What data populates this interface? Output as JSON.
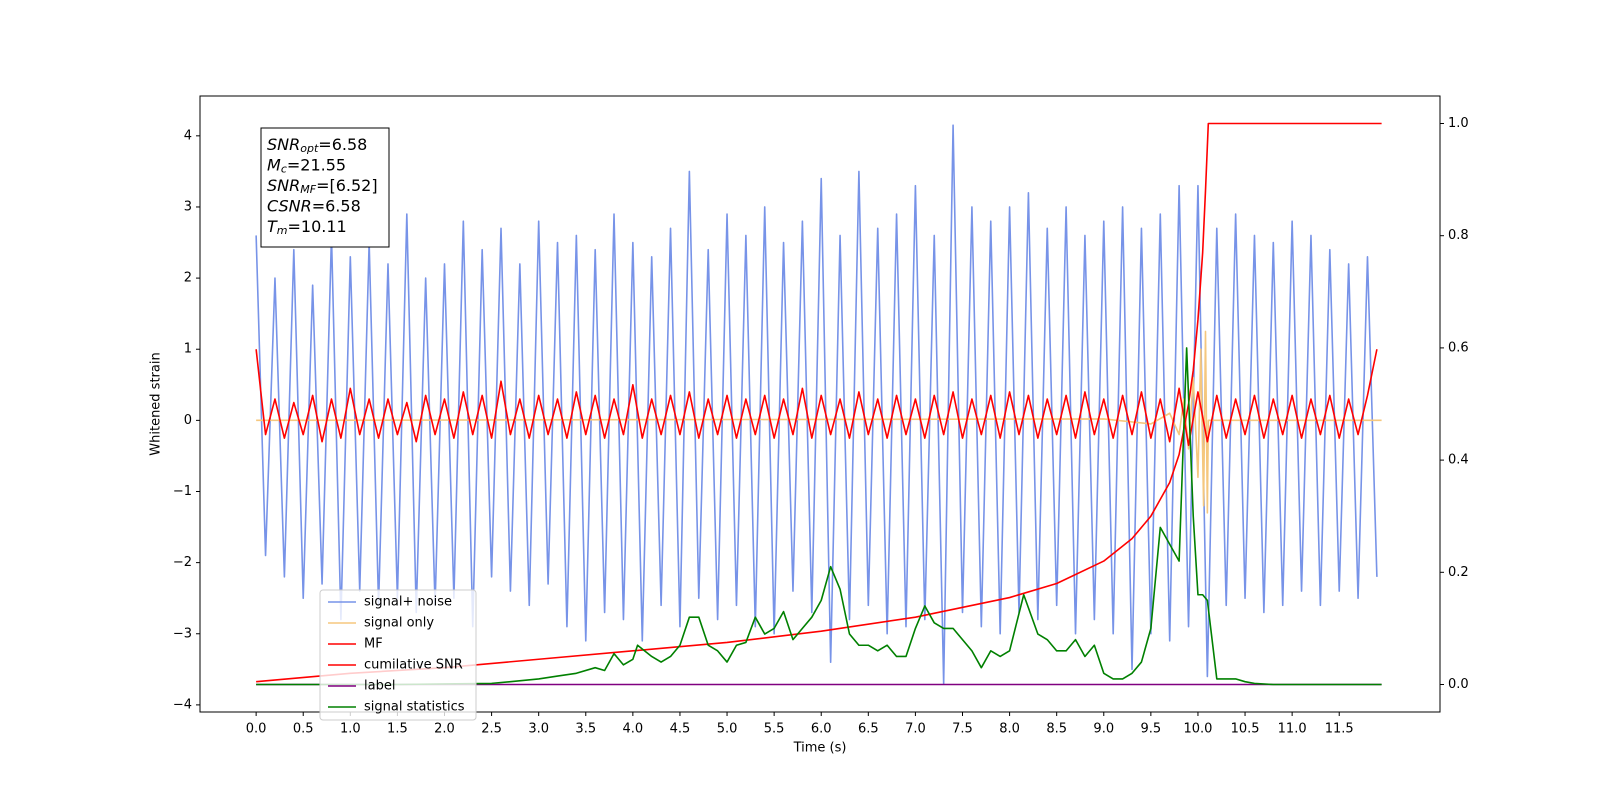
{
  "chart_data": {
    "type": "line",
    "xlabel": "Time (s)",
    "ylabel": "Whitened strain",
    "xlim": [
      -0.596,
      12.57
    ],
    "ylim": [
      -4.1,
      4.56
    ],
    "y2lim": [
      -0.049,
      1.049
    ],
    "xticks": [
      {
        "value": 0,
        "label": "0.0"
      },
      0.5,
      {
        "value": 1,
        "label": "1.0"
      },
      1.5,
      {
        "value": 2,
        "label": "2.0"
      },
      2.5,
      {
        "value": 3,
        "label": "3.0"
      },
      3.5,
      {
        "value": 4,
        "label": "4.0"
      },
      4.5,
      {
        "value": 5,
        "label": "5.0"
      },
      5.5,
      {
        "value": 6,
        "label": "6.0"
      },
      6.5,
      {
        "value": 7,
        "label": "7.0"
      },
      7.5,
      {
        "value": 8,
        "label": "8.0"
      },
      8.5,
      {
        "value": 9,
        "label": "9.0"
      },
      9.5,
      {
        "value": 10,
        "label": "10.0"
      },
      10.5,
      {
        "value": 11,
        "label": "11.0"
      },
      11.5
    ],
    "yticks": [
      {
        "value": -4,
        "label": "−4"
      },
      {
        "value": -3,
        "label": "−3"
      },
      {
        "value": -2,
        "label": "−2"
      },
      {
        "value": -1,
        "label": "−1"
      },
      0,
      1,
      2,
      3,
      4
    ],
    "y2ticks": [
      {
        "value": 0,
        "label": "0.0"
      },
      0.2,
      0.4,
      0.6,
      0.8,
      {
        "value": 1,
        "label": "1.0"
      }
    ],
    "legend": "lower left",
    "annotations": [
      {
        "symbol": "SNR",
        "subscript": "opt",
        "text": "=6.58"
      },
      {
        "symbol": "M",
        "subscript": "c",
        "text": "=21.55"
      },
      {
        "symbol": "SNR",
        "subscript": "MF",
        "text": "=[6.52]"
      },
      {
        "symbol": "CSNR",
        "text": "=6.58"
      },
      {
        "symbol": "T",
        "subscript": "m",
        "text": "=10.11"
      }
    ],
    "x": [
      0,
      0.1,
      0.2,
      0.3,
      0.4,
      0.5,
      0.6,
      0.7,
      0.8,
      0.9,
      1,
      1.1,
      1.2,
      1.3,
      1.4,
      1.5,
      1.6,
      1.7,
      1.8,
      1.9,
      2,
      2.1,
      2.2,
      2.3,
      2.4,
      2.5,
      2.6,
      2.7,
      2.8,
      2.9,
      3,
      3.1,
      3.2,
      3.3,
      3.4,
      3.5,
      3.6,
      3.7,
      3.8,
      3.9,
      4,
      4.1,
      4.2,
      4.3,
      4.4,
      4.5,
      4.6,
      4.7,
      4.8,
      4.9,
      5,
      5.1,
      5.2,
      5.3,
      5.4,
      5.5,
      5.6,
      5.7,
      5.8,
      5.9,
      6,
      6.1,
      6.2,
      6.3,
      6.4,
      6.5,
      6.6,
      6.7,
      6.8,
      6.9,
      7,
      7.1,
      7.2,
      7.3,
      7.4,
      7.5,
      7.6,
      7.7,
      7.8,
      7.9,
      8,
      8.1,
      8.2,
      8.3,
      8.4,
      8.5,
      8.6,
      8.7,
      8.8,
      8.9,
      9,
      9.1,
      9.2,
      9.3,
      9.4,
      9.5,
      9.6,
      9.7,
      9.8,
      9.9,
      10,
      10.1,
      10.2,
      10.3,
      10.4,
      10.5,
      10.6,
      10.7,
      10.8,
      10.9,
      11,
      11.1,
      11.2,
      11.3,
      11.4,
      11.5,
      11.6,
      11.7,
      11.8,
      11.9
    ],
    "series": [
      {
        "name": "signal+ noise",
        "color": "#7793e8",
        "values": [
          2.6,
          -1.9,
          2.0,
          -2.2,
          2.4,
          -2.5,
          1.9,
          -2.3,
          2.6,
          -2.8,
          2.3,
          -2.4,
          2.5,
          -2.6,
          2.2,
          -2.5,
          2.9,
          -2.7,
          2.0,
          -2.6,
          2.2,
          -2.5,
          2.8,
          -2.9,
          2.4,
          -2.2,
          2.7,
          -2.4,
          2.2,
          -2.6,
          2.8,
          -2.3,
          2.5,
          -2.9,
          2.6,
          -3.1,
          2.4,
          -2.7,
          2.9,
          -2.8,
          2.5,
          -3.1,
          2.3,
          -2.6,
          2.7,
          -2.9,
          3.5,
          -2.5,
          2.4,
          -2.8,
          2.9,
          -2.6,
          2.6,
          -2.9,
          3.0,
          -3.0,
          2.5,
          -2.4,
          2.8,
          -2.7,
          3.4,
          -3.4,
          2.6,
          -2.8,
          3.5,
          -2.6,
          2.7,
          -3.0,
          2.9,
          -2.9,
          3.3,
          -2.8,
          2.6,
          -3.7,
          4.15,
          -2.7,
          3.0,
          -2.9,
          2.8,
          -3.0,
          3.0,
          -2.7,
          3.2,
          -2.8,
          2.7,
          -2.6,
          3.0,
          -3.0,
          2.6,
          -2.8,
          2.8,
          -3.0,
          3.0,
          -3.5,
          2.7,
          -3.0,
          2.9,
          -3.1,
          3.3,
          -2.9,
          3.3,
          -3.6,
          2.7,
          -2.6,
          2.9,
          -2.5,
          2.6,
          -2.7,
          2.5,
          -2.6,
          2.8,
          -2.4,
          2.6,
          -2.6,
          2.4,
          -2.4,
          2.2,
          -2.5,
          2.3,
          -2.2
        ]
      },
      {
        "name": "signal only",
        "color": "#f5c77e",
        "x": [
          0,
          9.0,
          9.5,
          9.7,
          9.8,
          9.85,
          9.9,
          9.95,
          10.0,
          10.03,
          10.06,
          10.08,
          10.1,
          10.11,
          10.2,
          11.95
        ],
        "values": [
          0,
          0.02,
          -0.05,
          0.1,
          -0.2,
          0.3,
          -0.4,
          0.6,
          -0.8,
          1.0,
          -1.2,
          1.25,
          -1.3,
          0,
          0,
          0
        ]
      },
      {
        "name": "MF",
        "color": "red",
        "values": [
          1.0,
          -0.2,
          0.3,
          -0.25,
          0.25,
          -0.2,
          0.35,
          -0.3,
          0.3,
          -0.25,
          0.45,
          -0.2,
          0.3,
          -0.25,
          0.3,
          -0.2,
          0.25,
          -0.3,
          0.35,
          -0.2,
          0.3,
          -0.25,
          0.4,
          -0.2,
          0.35,
          -0.25,
          0.55,
          -0.2,
          0.3,
          -0.25,
          0.35,
          -0.2,
          0.3,
          -0.25,
          0.4,
          -0.2,
          0.35,
          -0.25,
          0.3,
          -0.2,
          0.5,
          -0.25,
          0.3,
          -0.2,
          0.35,
          -0.2,
          0.4,
          -0.25,
          0.3,
          -0.2,
          0.35,
          -0.25,
          0.3,
          -0.2,
          0.35,
          -0.25,
          0.3,
          -0.2,
          0.45,
          -0.25,
          0.35,
          -0.2,
          0.3,
          -0.25,
          0.4,
          -0.2,
          0.3,
          -0.25,
          0.35,
          -0.2,
          0.3,
          -0.25,
          0.35,
          -0.2,
          0.4,
          -0.25,
          0.3,
          -0.2,
          0.35,
          -0.25,
          0.4,
          -0.2,
          0.35,
          -0.25,
          0.3,
          -0.2,
          0.35,
          -0.25,
          0.4,
          -0.2,
          0.3,
          -0.25,
          0.35,
          -0.2,
          0.4,
          -0.25,
          0.3,
          -0.3,
          0.45,
          -0.35,
          0.4,
          -0.3,
          0.35,
          -0.25,
          0.3,
          -0.2,
          0.35,
          -0.25,
          0.3,
          -0.2,
          0.35,
          -0.25,
          0.3,
          -0.2,
          0.35,
          -0.25,
          0.3,
          -0.2,
          0.35,
          1.0
        ]
      },
      {
        "name": "cumilative SNR",
        "color": "red",
        "axis": "y2",
        "x": [
          0,
          1,
          2,
          3,
          4,
          5,
          6,
          7,
          8,
          8.5,
          9,
          9.3,
          9.5,
          9.7,
          9.8,
          9.9,
          9.95,
          10.0,
          10.05,
          10.08,
          10.11,
          11.95
        ],
        "values": [
          0.005,
          0.02,
          0.03,
          0.045,
          0.06,
          0.075,
          0.095,
          0.12,
          0.155,
          0.18,
          0.22,
          0.26,
          0.3,
          0.36,
          0.41,
          0.5,
          0.56,
          0.65,
          0.77,
          0.88,
          1.0,
          1.0
        ]
      },
      {
        "name": "label",
        "color": "purple",
        "axis": "y2",
        "x": [
          0,
          11.95
        ],
        "values": [
          0,
          0
        ]
      },
      {
        "name": "signal statistics",
        "color": "green",
        "axis": "y2",
        "x": [
          0,
          0.5,
          1,
          1.5,
          2,
          2.5,
          2.7,
          3.0,
          3.2,
          3.4,
          3.6,
          3.7,
          3.8,
          3.9,
          4.0,
          4.05,
          4.2,
          4.3,
          4.4,
          4.5,
          4.6,
          4.7,
          4.8,
          4.9,
          5.0,
          5.1,
          5.2,
          5.3,
          5.4,
          5.5,
          5.6,
          5.7,
          5.8,
          5.9,
          6.0,
          6.1,
          6.2,
          6.3,
          6.4,
          6.5,
          6.6,
          6.7,
          6.8,
          6.9,
          7.0,
          7.1,
          7.2,
          7.3,
          7.4,
          7.5,
          7.6,
          7.7,
          7.8,
          7.9,
          8.0,
          8.15,
          8.3,
          8.4,
          8.5,
          8.6,
          8.7,
          8.8,
          8.9,
          9.0,
          9.1,
          9.2,
          9.3,
          9.4,
          9.5,
          9.6,
          9.7,
          9.8,
          9.88,
          9.95,
          10.0,
          10.05,
          10.1,
          10.2,
          10.3,
          10.4,
          10.5,
          10.6,
          10.8,
          11.0,
          11.5,
          11.95
        ],
        "values": [
          0,
          0,
          0,
          0,
          0.001,
          0.002,
          0.005,
          0.01,
          0.015,
          0.02,
          0.03,
          0.025,
          0.055,
          0.035,
          0.045,
          0.07,
          0.05,
          0.04,
          0.05,
          0.07,
          0.12,
          0.12,
          0.07,
          0.06,
          0.04,
          0.07,
          0.075,
          0.12,
          0.09,
          0.1,
          0.13,
          0.08,
          0.1,
          0.12,
          0.15,
          0.21,
          0.17,
          0.09,
          0.07,
          0.07,
          0.06,
          0.07,
          0.05,
          0.05,
          0.1,
          0.14,
          0.11,
          0.1,
          0.1,
          0.08,
          0.06,
          0.03,
          0.06,
          0.05,
          0.06,
          0.16,
          0.09,
          0.08,
          0.06,
          0.06,
          0.08,
          0.05,
          0.07,
          0.02,
          0.01,
          0.01,
          0.02,
          0.04,
          0.1,
          0.28,
          0.25,
          0.22,
          0.6,
          0.3,
          0.16,
          0.16,
          0.15,
          0.01,
          0.01,
          0.01,
          0.005,
          0.002,
          0,
          0,
          0,
          0
        ]
      }
    ]
  }
}
